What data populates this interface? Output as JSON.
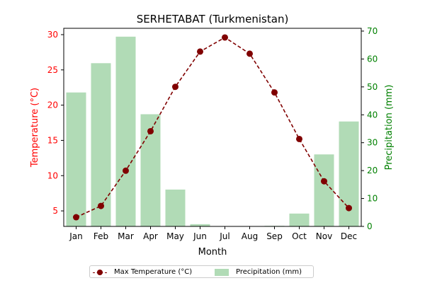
{
  "chart_data": {
    "type": "bar+line",
    "title": "SERHETABAT (Turkmenistan)",
    "xlabel": "Month",
    "categories": [
      "Jan",
      "Feb",
      "Mar",
      "Apr",
      "May",
      "Jun",
      "Jul",
      "Aug",
      "Sep",
      "Oct",
      "Nov",
      "Dec"
    ],
    "left_axis": {
      "label": "Temperature (°C)",
      "color": "#ff0000",
      "ylim": [
        2.8,
        30.9
      ],
      "ticks": [
        5,
        10,
        15,
        20,
        25,
        30
      ]
    },
    "right_axis": {
      "label": "Precipitation (mm)",
      "color": "#008000",
      "ylim": [
        0,
        71
      ],
      "ticks": [
        0,
        10,
        20,
        30,
        40,
        50,
        60,
        70
      ]
    },
    "series": [
      {
        "name": "Max Temperature (°C)",
        "kind": "line",
        "axis": "left",
        "color": "#800000",
        "style": "dashed",
        "marker": "circle",
        "values": [
          4.1,
          5.7,
          10.7,
          16.3,
          22.6,
          27.6,
          29.6,
          27.3,
          21.8,
          15.2,
          9.2,
          5.4
        ]
      },
      {
        "name": "Precipitation (mm)",
        "kind": "bar",
        "axis": "right",
        "color": "#5db466",
        "opacity": 0.48,
        "values": [
          48,
          58.5,
          68,
          40.2,
          13.2,
          0.8,
          0,
          0,
          0.2,
          4.6,
          25.8,
          37.6
        ]
      }
    ],
    "legend_position": "bottom-center",
    "grid": false
  }
}
